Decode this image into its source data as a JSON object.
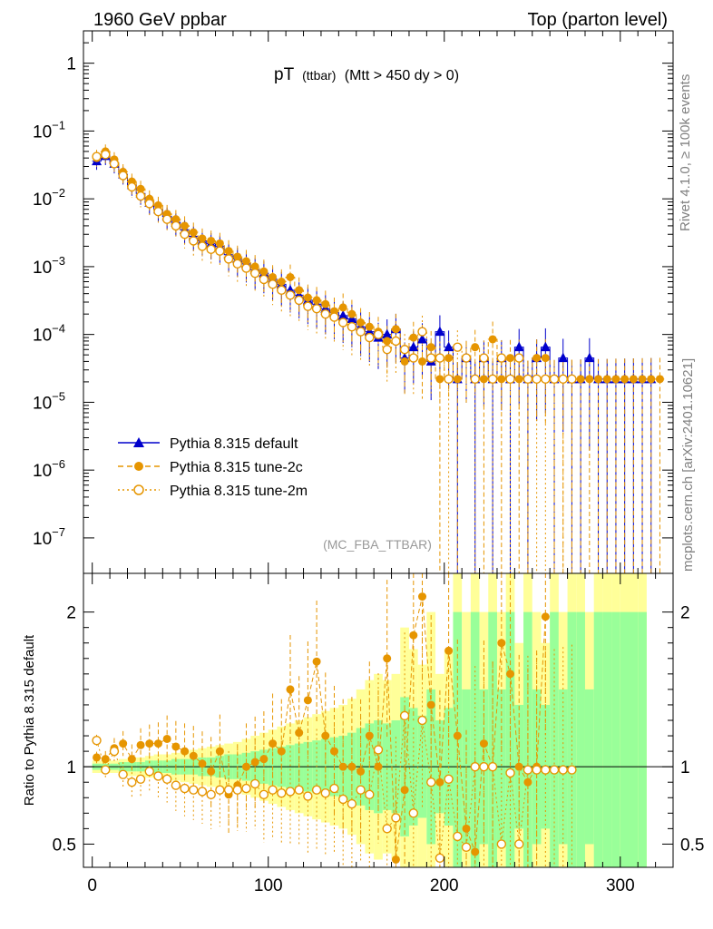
{
  "header": {
    "left_title": "1960 GeV ppbar",
    "right_title": "Top (parton level)"
  },
  "side_labels": {
    "rivet": "Rivet 4.1.0, ≥ 100k events",
    "mcplots": "mcplots.cern.ch [arXiv:2401.10621]"
  },
  "plot_title": {
    "main": "pT",
    "sub": "(ttbar)",
    "cut": "(Mtt > 450 dy > 0)"
  },
  "analysis_tag": "(MC_FBA_TTBAR)",
  "ratio_ylabel": "Ratio to Pythia 8.315 default",
  "colors": {
    "default": "#0000cc",
    "tune2c": "#e69500",
    "tune2m": "#e69500",
    "band_inner": "#99ff99",
    "band_outer": "#ffff99"
  },
  "chart_data": [
    {
      "type": "scatter",
      "name": "main",
      "yscale": "log",
      "ylim": [
        3e-08,
        3
      ],
      "xlim": [
        -5,
        330
      ],
      "y_ticks": [
        {
          "value": 1,
          "label": "1"
        },
        {
          "value": 0.1,
          "label": "10",
          "exp": "−1"
        },
        {
          "value": 0.01,
          "label": "10",
          "exp": "−2"
        },
        {
          "value": 0.001,
          "label": "10",
          "exp": "−3"
        },
        {
          "value": 0.0001,
          "label": "10",
          "exp": "−4"
        },
        {
          "value": 1e-05,
          "label": "10",
          "exp": "−5"
        },
        {
          "value": 1e-06,
          "label": "10",
          "exp": "−6"
        },
        {
          "value": 1e-07,
          "label": "10",
          "exp": "−7"
        }
      ],
      "legend": {
        "position": "lower-left",
        "entries": [
          {
            "label": "Pythia 8.315 default",
            "series": "default"
          },
          {
            "label": "Pythia 8.315 tune-2c",
            "series": "tune2c"
          },
          {
            "label": "Pythia 8.315 tune-2m",
            "series": "tune2m"
          }
        ]
      },
      "series": [
        {
          "name": "Pythia 8.315 default",
          "key": "default",
          "marker": "triangle",
          "x": [
            2.5,
            7.5,
            12.5,
            17.5,
            22.5,
            27.5,
            32.5,
            37.5,
            42.5,
            47.5,
            52.5,
            57.5,
            62.5,
            67.5,
            72.5,
            77.5,
            82.5,
            87.5,
            92.5,
            97.5,
            102.5,
            107.5,
            112.5,
            117.5,
            122.5,
            127.5,
            132.5,
            137.5,
            142.5,
            147.5,
            152.5,
            157.5,
            162.5,
            167.5,
            172.5,
            177.5,
            182.5,
            187.5,
            192.5,
            197.5,
            202.5,
            207.5,
            212.5,
            217.5,
            222.5,
            227.5,
            232.5,
            237.5,
            242.5,
            247.5,
            252.5,
            257.5,
            262.5,
            267.5,
            272.5,
            277.5,
            282.5,
            287.5,
            292.5,
            297.5,
            302.5,
            307.5,
            312.5,
            317.5
          ],
          "values": [
            0.036,
            0.043,
            0.033,
            0.023,
            0.016,
            0.012,
            0.0088,
            0.007,
            0.0055,
            0.0045,
            0.0035,
            0.0028,
            0.0024,
            0.0022,
            0.002,
            0.0015,
            0.0013,
            0.0011,
            0.0009,
            0.0008,
            0.00065,
            0.00055,
            0.00045,
            0.00038,
            0.00032,
            0.00028,
            0.00024,
            0.00021,
            0.00019,
            0.00017,
            0.00013,
            0.00011,
            9e-05,
            0.0001,
            0.00012,
            4.5e-05,
            6.5e-05,
            8.5e-05,
            4e-05,
            0.00011,
            6.5e-05,
            2.2e-05,
            4.5e-05,
            2.2e-05,
            4.5e-05,
            2.2e-05,
            4.5e-05,
            2.2e-05,
            6.5e-05,
            2.2e-05,
            4.5e-05,
            6.5e-05,
            2.2e-05,
            4.5e-05,
            2.2e-05,
            2.2e-05,
            4.5e-05,
            2.2e-05,
            2.2e-05,
            2.2e-05,
            2.2e-05,
            2.2e-05,
            2.2e-05,
            2.2e-05
          ]
        },
        {
          "name": "Pythia 8.315 tune-2c",
          "key": "tune2c",
          "marker": "circle",
          "x": [
            2.5,
            7.5,
            12.5,
            17.5,
            22.5,
            27.5,
            32.5,
            37.5,
            42.5,
            47.5,
            52.5,
            57.5,
            62.5,
            67.5,
            72.5,
            77.5,
            82.5,
            87.5,
            92.5,
            97.5,
            102.5,
            107.5,
            112.5,
            117.5,
            122.5,
            127.5,
            132.5,
            137.5,
            142.5,
            147.5,
            152.5,
            157.5,
            162.5,
            167.5,
            172.5,
            177.5,
            182.5,
            187.5,
            192.5,
            197.5,
            202.5,
            207.5,
            212.5,
            217.5,
            222.5,
            227.5,
            232.5,
            237.5,
            242.5,
            247.5,
            252.5,
            257.5,
            262.5,
            267.5,
            272.5,
            277.5,
            282.5,
            287.5,
            292.5,
            297.5,
            302.5,
            307.5,
            312.5,
            317.5,
            322.5
          ],
          "values": [
            0.04,
            0.05,
            0.038,
            0.025,
            0.018,
            0.014,
            0.01,
            0.008,
            0.006,
            0.005,
            0.004,
            0.0032,
            0.0026,
            0.0024,
            0.0022,
            0.0017,
            0.0014,
            0.0012,
            0.001,
            0.00085,
            0.0007,
            0.0006,
            0.0007,
            0.00045,
            0.00035,
            0.00032,
            0.00028,
            0.00022,
            0.00025,
            0.0002,
            0.00015,
            0.00013,
            0.00011,
            8e-05,
            0.00012,
            4e-05,
            9e-05,
            4e-05,
            6.5e-05,
            2.2e-05,
            4.5e-05,
            2.2e-05,
            4.5e-05,
            6.5e-05,
            2.2e-05,
            8.5e-05,
            2.2e-05,
            4.5e-05,
            2.2e-05,
            2.2e-05,
            4.5e-05,
            4.5e-05,
            2.2e-05,
            2.2e-05,
            2.2e-05,
            2.2e-05,
            2.2e-05,
            2.2e-05,
            2.2e-05,
            2.2e-05,
            2.2e-05,
            2.2e-05,
            2.2e-05,
            2.2e-05,
            2.2e-05
          ]
        },
        {
          "name": "Pythia 8.315 tune-2m",
          "key": "tune2m",
          "marker": "circle-open",
          "x": [
            2.5,
            7.5,
            12.5,
            17.5,
            22.5,
            27.5,
            32.5,
            37.5,
            42.5,
            47.5,
            52.5,
            57.5,
            62.5,
            67.5,
            72.5,
            77.5,
            82.5,
            87.5,
            92.5,
            97.5,
            102.5,
            107.5,
            112.5,
            117.5,
            122.5,
            127.5,
            132.5,
            137.5,
            142.5,
            147.5,
            152.5,
            157.5,
            162.5,
            167.5,
            172.5,
            177.5,
            182.5,
            187.5,
            192.5,
            197.5,
            202.5,
            207.5,
            212.5,
            217.5,
            222.5,
            227.5,
            232.5,
            237.5,
            242.5,
            247.5,
            252.5,
            257.5,
            262.5,
            267.5,
            272.5
          ],
          "values": [
            0.042,
            0.045,
            0.033,
            0.022,
            0.015,
            0.011,
            0.0085,
            0.0065,
            0.005,
            0.004,
            0.003,
            0.0024,
            0.002,
            0.0018,
            0.0017,
            0.0013,
            0.0011,
            0.00095,
            0.0008,
            0.00065,
            0.00055,
            0.00045,
            0.00038,
            0.00032,
            0.00026,
            0.00024,
            0.0002,
            0.00018,
            0.00015,
            0.00013,
            0.00011,
            9e-05,
            0.0001,
            6e-05,
            8e-05,
            6e-05,
            4.5e-05,
            0.00011,
            4.5e-05,
            4.5e-05,
            2.2e-05,
            6.5e-05,
            4.5e-05,
            2.2e-05,
            4.5e-05,
            2.2e-05,
            4.5e-05,
            2.2e-05,
            4.5e-05,
            2.2e-05,
            2.2e-05,
            2.2e-05,
            2.2e-05,
            2.2e-05,
            2.2e-05
          ]
        }
      ]
    },
    {
      "type": "scatter",
      "name": "ratio",
      "ylabel": "Ratio to Pythia 8.315 default",
      "ylim": [
        0.35,
        2.25
      ],
      "xlim": [
        -5,
        330
      ],
      "x_ticks": [
        0,
        100,
        200,
        300
      ],
      "x_tick_labels": [
        "0",
        "100",
        "200",
        "300"
      ],
      "y_ticks": [
        0.5,
        1,
        2
      ],
      "y_tick_labels": [
        "0.5",
        "1",
        "2"
      ],
      "reference_line": 1,
      "bands": {
        "x": [
          2.5,
          7.5,
          12.5,
          17.5,
          22.5,
          27.5,
          32.5,
          37.5,
          42.5,
          47.5,
          52.5,
          57.5,
          62.5,
          67.5,
          72.5,
          77.5,
          82.5,
          87.5,
          92.5,
          97.5,
          102.5,
          107.5,
          112.5,
          117.5,
          122.5,
          127.5,
          132.5,
          137.5,
          142.5,
          147.5,
          152.5,
          157.5,
          162.5,
          167.5,
          172.5,
          177.5,
          182.5,
          187.5,
          192.5,
          197.5,
          202.5,
          207.5,
          212.5,
          217.5,
          222.5,
          227.5,
          232.5,
          237.5,
          242.5,
          247.5,
          252.5,
          257.5,
          262.5,
          267.5,
          272.5,
          277.5,
          282.5,
          287.5,
          292.5,
          297.5,
          302.5,
          307.5,
          312.5
        ],
        "inner_half_width": [
          0.02,
          0.02,
          0.02,
          0.03,
          0.03,
          0.03,
          0.04,
          0.04,
          0.04,
          0.05,
          0.05,
          0.05,
          0.06,
          0.06,
          0.07,
          0.08,
          0.08,
          0.09,
          0.1,
          0.11,
          0.12,
          0.13,
          0.14,
          0.15,
          0.16,
          0.17,
          0.18,
          0.19,
          0.2,
          0.22,
          0.25,
          0.28,
          0.3,
          0.28,
          0.3,
          0.45,
          0.38,
          0.33,
          0.5,
          0.3,
          0.38,
          1.0,
          0.5,
          1.0,
          0.5,
          1.0,
          0.5,
          1.0,
          0.4,
          1.0,
          0.5,
          0.4,
          1.0,
          0.5,
          1.0,
          1.0,
          0.5,
          1.0,
          1.0,
          1.0,
          1.0,
          1.0,
          1.0
        ],
        "outer_half_width": [
          0.04,
          0.04,
          0.04,
          0.05,
          0.06,
          0.06,
          0.07,
          0.08,
          0.08,
          0.09,
          0.1,
          0.11,
          0.12,
          0.13,
          0.14,
          0.15,
          0.16,
          0.18,
          0.2,
          0.22,
          0.24,
          0.26,
          0.28,
          0.3,
          0.32,
          0.34,
          0.36,
          0.38,
          0.4,
          0.44,
          0.5,
          0.56,
          0.6,
          0.56,
          0.6,
          0.9,
          0.76,
          0.66,
          1.0,
          0.6,
          0.76,
          1.4,
          1.0,
          1.4,
          1.0,
          1.4,
          1.0,
          1.4,
          0.8,
          1.4,
          1.0,
          0.8,
          1.4,
          1.0,
          1.4,
          1.4,
          1.0,
          1.4,
          1.4,
          1.4,
          1.4,
          1.4,
          1.4
        ]
      },
      "series": [
        {
          "name": "Pythia 8.315 tune-2c",
          "key": "tune2c",
          "marker": "circle",
          "x": [
            2.5,
            7.5,
            12.5,
            17.5,
            22.5,
            27.5,
            32.5,
            37.5,
            42.5,
            47.5,
            52.5,
            57.5,
            62.5,
            67.5,
            72.5,
            77.5,
            82.5,
            87.5,
            92.5,
            97.5,
            102.5,
            107.5,
            112.5,
            117.5,
            122.5,
            127.5,
            132.5,
            137.5,
            142.5,
            147.5,
            152.5,
            157.5,
            162.5,
            167.5,
            172.5,
            177.5,
            182.5,
            187.5,
            192.5,
            197.5,
            202.5,
            207.5,
            212.5,
            217.5,
            222.5,
            227.5,
            232.5,
            237.5,
            242.5,
            247.5,
            252.5,
            257.5
          ],
          "values": [
            1.06,
            1.05,
            1.12,
            1.15,
            1.05,
            1.14,
            1.15,
            1.15,
            1.18,
            1.13,
            1.1,
            1.07,
            1.02,
            0.97,
            1.1,
            0.82,
            0.88,
            1.0,
            1.03,
            1.05,
            1.15,
            1.1,
            1.5,
            1.22,
            1.43,
            1.68,
            1.2,
            1.1,
            1.0,
            1.0,
            0.97,
            1.2,
            1.0,
            1.7,
            0.4,
            0.85,
            1.85,
            2.1,
            1.4,
            0.9,
            1.75,
            1.2,
            0.6,
            0.45,
            1.15,
            1.0,
            1.8,
            1.6,
            1.0,
            0.9,
            1.0,
            1.97
          ]
        },
        {
          "name": "Pythia 8.315 tune-2m",
          "key": "tune2m",
          "marker": "circle-open",
          "x": [
            2.5,
            7.5,
            12.5,
            17.5,
            22.5,
            27.5,
            32.5,
            37.5,
            42.5,
            47.5,
            52.5,
            57.5,
            62.5,
            67.5,
            72.5,
            77.5,
            82.5,
            87.5,
            92.5,
            97.5,
            102.5,
            107.5,
            112.5,
            117.5,
            122.5,
            127.5,
            132.5,
            137.5,
            142.5,
            147.5,
            152.5,
            157.5,
            162.5,
            167.5,
            172.5,
            177.5,
            182.5,
            187.5,
            192.5,
            197.5,
            202.5,
            207.5,
            212.5,
            217.5,
            222.5,
            227.5,
            232.5,
            237.5,
            242.5,
            247.5,
            252.5,
            257.5,
            262.5,
            267.5,
            272.5
          ],
          "values": [
            1.17,
            0.98,
            1.1,
            0.95,
            0.9,
            0.92,
            0.97,
            0.94,
            0.92,
            0.88,
            0.86,
            0.85,
            0.84,
            0.82,
            0.85,
            0.85,
            0.85,
            0.86,
            0.89,
            0.82,
            0.85,
            0.83,
            0.84,
            0.85,
            0.81,
            0.85,
            0.83,
            0.86,
            0.79,
            0.76,
            0.85,
            0.82,
            1.11,
            0.6,
            0.67,
            1.33,
            0.7,
            1.3,
            0.9,
            0.41,
            0.92,
            0.55,
            0.48,
            1.0,
            1.0,
            1.0,
            0.5,
            0.96,
            0.5,
            0.98,
            0.98,
            0.98,
            0.98,
            0.98,
            0.98
          ]
        }
      ]
    }
  ]
}
